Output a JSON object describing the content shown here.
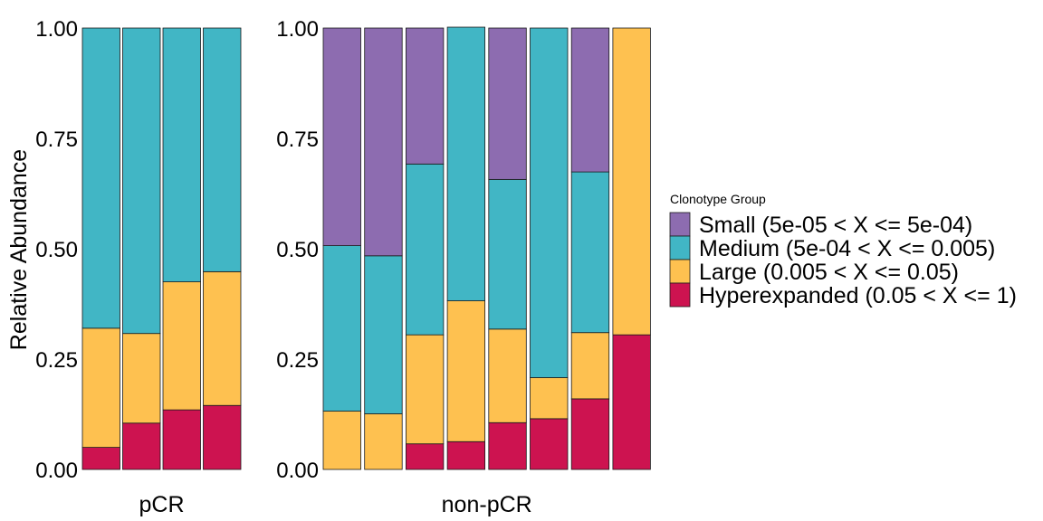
{
  "chart_data": {
    "type": "bar",
    "stacked": true,
    "ylabel": "Relative Abundance",
    "ylim": [
      0,
      1
    ],
    "yticks": [
      "0.00",
      "0.25",
      "0.50",
      "0.75",
      "1.00"
    ],
    "legend": {
      "title": "Clonotype Group",
      "placement": "right",
      "items": [
        {
          "name": "Small (5e-05 < X <= 5e-04)",
          "color": "#8d6cb0"
        },
        {
          "name": "Medium (5e-04 < X <= 0.005)",
          "color": "#41b6c5"
        },
        {
          "name": "Large (0.005 < X <= 0.05)",
          "color": "#fec150"
        },
        {
          "name": "Hyperexpanded (0.05 < X <= 1)",
          "color": "#cd1350"
        }
      ]
    },
    "panels": [
      {
        "label": "pCR",
        "bars": [
          {
            "hyperexpanded": 0.05,
            "large": 0.27,
            "medium": 0.68,
            "small": 0.0
          },
          {
            "hyperexpanded": 0.105,
            "large": 0.203,
            "medium": 0.692,
            "small": 0.0
          },
          {
            "hyperexpanded": 0.135,
            "large": 0.29,
            "medium": 0.575,
            "small": 0.0
          },
          {
            "hyperexpanded": 0.145,
            "large": 0.303,
            "medium": 0.552,
            "small": 0.0
          }
        ]
      },
      {
        "label": "non-pCR",
        "bars": [
          {
            "hyperexpanded": 0.0,
            "large": 0.132,
            "medium": 0.375,
            "small": 0.493
          },
          {
            "hyperexpanded": 0.0,
            "large": 0.126,
            "medium": 0.358,
            "small": 0.516
          },
          {
            "hyperexpanded": 0.058,
            "large": 0.247,
            "medium": 0.387,
            "small": 0.308
          },
          {
            "hyperexpanded": 0.063,
            "large": 0.319,
            "medium": 0.62,
            "small": 0.0
          },
          {
            "hyperexpanded": 0.106,
            "large": 0.212,
            "medium": 0.339,
            "small": 0.343
          },
          {
            "hyperexpanded": 0.115,
            "large": 0.093,
            "medium": 0.792,
            "small": 0.0
          },
          {
            "hyperexpanded": 0.16,
            "large": 0.15,
            "medium": 0.364,
            "small": 0.326
          },
          {
            "hyperexpanded": 0.305,
            "large": 0.695,
            "medium": 0.0,
            "small": 0.0
          }
        ]
      }
    ]
  }
}
